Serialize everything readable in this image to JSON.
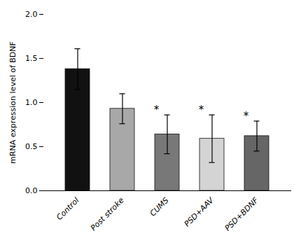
{
  "chart_data": {
    "type": "bar",
    "categories": [
      "Control",
      "Post stroke",
      "CUMS",
      "PSD+AAV",
      "PSD+BDNF"
    ],
    "values": [
      1.38,
      0.93,
      0.64,
      0.59,
      0.62
    ],
    "errors": [
      0.23,
      0.17,
      0.22,
      0.27,
      0.17
    ],
    "colors": [
      "#111111",
      "#a8a8a8",
      "#787878",
      "#d4d4d4",
      "#666666"
    ],
    "significance": [
      null,
      null,
      "*",
      "*",
      "*"
    ],
    "ylabel": "mRNA expression level of BDNF",
    "ylim": [
      0.0,
      2.0
    ],
    "yticks": [
      {
        "value": 0,
        "label": "0.0"
      },
      0.5,
      {
        "value": 1,
        "label": "1.0"
      },
      1.5,
      {
        "value": 2,
        "label": "2.0"
      }
    ],
    "grid": false
  }
}
